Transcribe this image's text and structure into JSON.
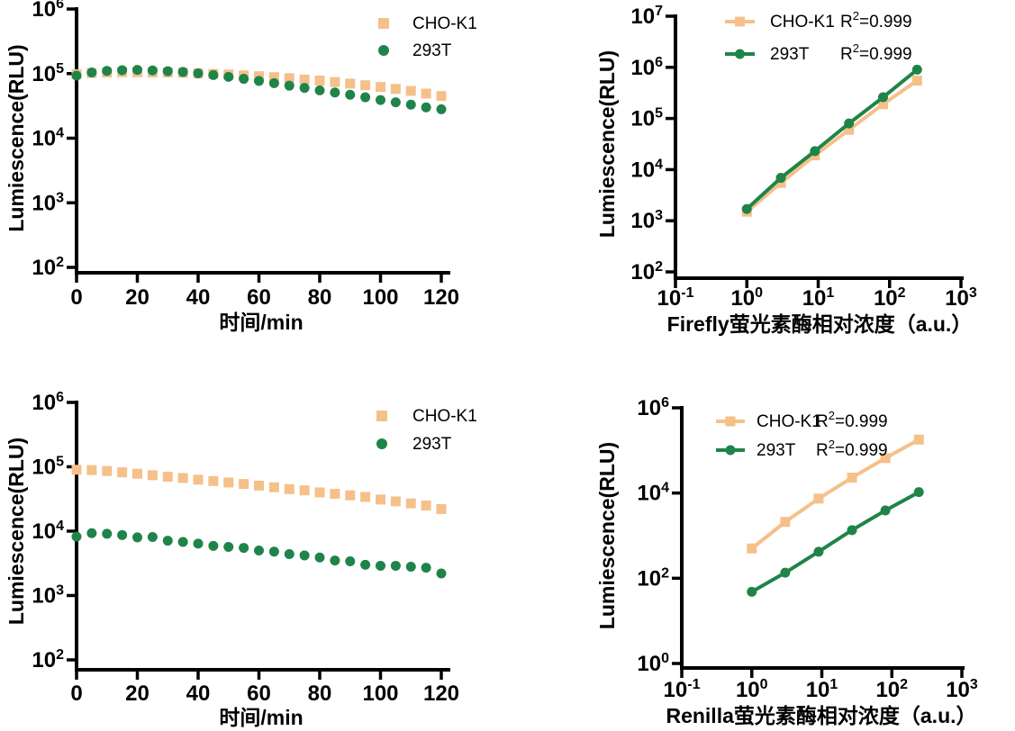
{
  "colors": {
    "cho_k1_orange": "#F5C08A",
    "t293_green": "#1F8449",
    "axis": "#000000",
    "background": "#FFFFFF"
  },
  "chart_data": [
    {
      "panel": "top-left",
      "type": "scatter",
      "title": "",
      "xlabel": "时间/min",
      "ylabel": "Lumiescence(RLU)",
      "x_scale": "linear",
      "y_scale": "log",
      "x_range": [
        0,
        120
      ],
      "x_ticks": [
        0,
        20,
        40,
        60,
        80,
        100,
        120
      ],
      "y_range_exponents": [
        2,
        6
      ],
      "y_tick_exponents": [
        2,
        3,
        4,
        5,
        6
      ],
      "grid": false,
      "legend_style": "marker",
      "legend_position": "top-right-inside",
      "series": [
        {
          "name": "CHO-K1",
          "color": "cho_k1_orange",
          "marker": "square",
          "line": false,
          "x": [
            0,
            5,
            10,
            15,
            20,
            25,
            30,
            35,
            40,
            45,
            50,
            55,
            60,
            65,
            70,
            75,
            80,
            85,
            90,
            95,
            100,
            105,
            110,
            115,
            120
          ],
          "y": [
            98000,
            102000,
            104000,
            105000,
            105000,
            104000,
            104000,
            103000,
            101000,
            99000,
            97000,
            94000,
            91000,
            88000,
            85000,
            81000,
            78000,
            74000,
            70000,
            66000,
            62000,
            58000,
            54000,
            49000,
            45000
          ]
        },
        {
          "name": "293T",
          "color": "t293_green",
          "marker": "circle",
          "line": false,
          "x": [
            0,
            5,
            10,
            15,
            20,
            25,
            30,
            35,
            40,
            45,
            50,
            55,
            60,
            65,
            70,
            75,
            80,
            85,
            90,
            95,
            100,
            105,
            110,
            115,
            120
          ],
          "y": [
            93000,
            104000,
            110000,
            113000,
            114000,
            112000,
            109000,
            106000,
            101000,
            95000,
            89000,
            83000,
            77000,
            71000,
            65000,
            60000,
            55000,
            51000,
            47000,
            43000,
            39000,
            36000,
            33000,
            30000,
            28000
          ]
        }
      ]
    },
    {
      "panel": "top-right",
      "type": "line",
      "title": "",
      "xlabel": "Firefly萤光素酶相对浓度（a.u.）",
      "ylabel": "Lumiescence(RLU)",
      "x_scale": "log",
      "y_scale": "log",
      "x_range_exponents": [
        -1,
        3
      ],
      "x_tick_exponents": [
        -1,
        0,
        1,
        2,
        3
      ],
      "y_range_exponents": [
        2,
        7
      ],
      "y_tick_exponents": [
        2,
        3,
        4,
        5,
        6,
        7
      ],
      "grid": false,
      "legend_style": "line",
      "legend_position": "top-left-inside",
      "series": [
        {
          "name": "CHO-K1",
          "r2": "0.999",
          "color": "cho_k1_orange",
          "marker": "square",
          "line": true,
          "x": [
            1,
            3,
            9,
            27,
            81,
            243
          ],
          "y": [
            1500,
            5500,
            19000,
            60000,
            190000,
            550000
          ]
        },
        {
          "name": "293T",
          "r2": "0.999",
          "color": "t293_green",
          "marker": "circle",
          "line": true,
          "x": [
            1,
            3,
            9,
            27,
            81,
            243
          ],
          "y": [
            1700,
            6900,
            23000,
            80000,
            260000,
            900000
          ]
        }
      ]
    },
    {
      "panel": "bottom-left",
      "type": "scatter",
      "title": "",
      "xlabel": "时间/min",
      "ylabel": "Lumiescence(RLU)",
      "x_scale": "linear",
      "y_scale": "log",
      "x_range": [
        0,
        120
      ],
      "x_ticks": [
        0,
        20,
        40,
        60,
        80,
        100,
        120
      ],
      "y_range_exponents": [
        2,
        6
      ],
      "y_tick_exponents": [
        2,
        3,
        4,
        5,
        6
      ],
      "grid": false,
      "legend_style": "marker",
      "legend_position": "top-right-inside",
      "series": [
        {
          "name": "CHO-K1",
          "color": "cho_k1_orange",
          "marker": "square",
          "line": false,
          "x": [
            0,
            5,
            10,
            15,
            20,
            25,
            30,
            35,
            40,
            45,
            50,
            55,
            60,
            65,
            70,
            75,
            80,
            85,
            90,
            95,
            100,
            105,
            110,
            115,
            120
          ],
          "y": [
            90000,
            89000,
            86000,
            82000,
            78000,
            74000,
            70000,
            67000,
            63000,
            60000,
            57000,
            54000,
            51000,
            48000,
            45000,
            43000,
            40000,
            38000,
            36000,
            34000,
            31000,
            29000,
            27000,
            25000,
            22000
          ]
        },
        {
          "name": "293T",
          "color": "t293_green",
          "marker": "circle",
          "line": false,
          "x": [
            0,
            5,
            10,
            15,
            20,
            25,
            30,
            35,
            40,
            45,
            50,
            55,
            60,
            65,
            70,
            75,
            80,
            85,
            90,
            95,
            100,
            105,
            110,
            115,
            120
          ],
          "y": [
            8200,
            9300,
            9100,
            8700,
            8000,
            8100,
            7100,
            6800,
            6400,
            5900,
            5700,
            5500,
            5000,
            4800,
            4400,
            4200,
            3900,
            3500,
            3400,
            3000,
            2900,
            2900,
            2800,
            2700,
            2200
          ]
        }
      ]
    },
    {
      "panel": "bottom-right",
      "type": "line",
      "title": "",
      "xlabel": "Renilla萤光素酶相对浓度（a.u.）",
      "ylabel": "Lumiescence(RLU)",
      "x_scale": "log",
      "y_scale": "log",
      "x_range_exponents": [
        -1,
        3
      ],
      "x_tick_exponents": [
        -1,
        0,
        1,
        2,
        3
      ],
      "y_range_exponents": [
        0,
        6
      ],
      "y_tick_exponents": [
        0,
        2,
        4,
        6
      ],
      "grid": false,
      "legend_style": "line",
      "legend_position": "top-left-inside",
      "series": [
        {
          "name": "CHO-K1",
          "r2": "0.999",
          "color": "cho_k1_orange",
          "marker": "square",
          "line": true,
          "x": [
            1,
            3,
            9,
            27,
            81,
            243
          ],
          "y": [
            500,
            2100,
            7400,
            23000,
            66000,
            180000
          ]
        },
        {
          "name": "293T",
          "r2": "0.999",
          "color": "t293_green",
          "marker": "circle",
          "line": true,
          "x": [
            1,
            3,
            9,
            27,
            81,
            243
          ],
          "y": [
            48,
            135,
            420,
            1350,
            3900,
            10500
          ]
        }
      ]
    }
  ]
}
